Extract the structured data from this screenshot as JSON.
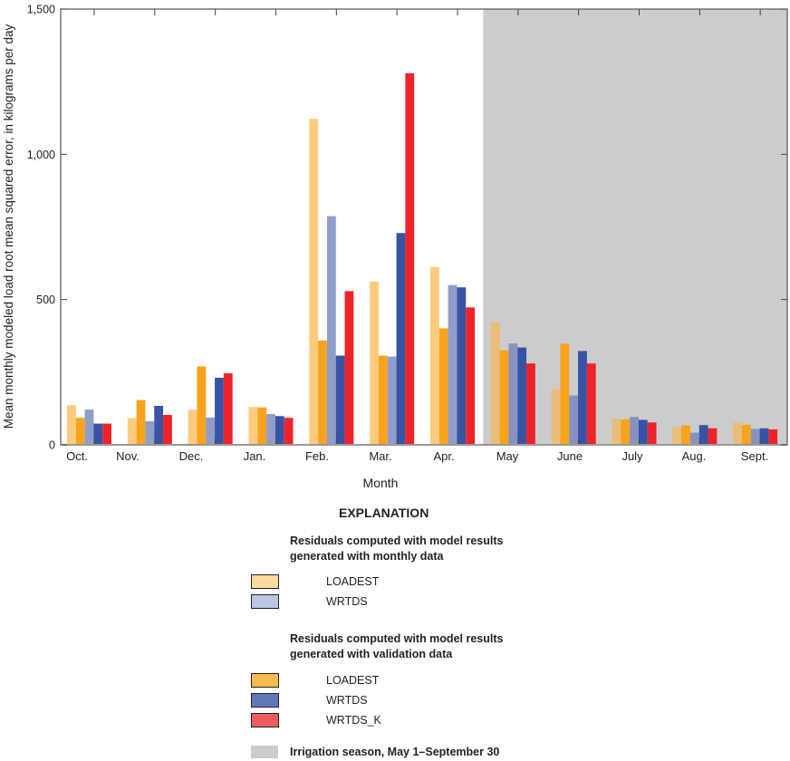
{
  "chart_data": {
    "type": "bar",
    "ylabel": "Mean monthly modeled load root mean squared error, in kilograms per day",
    "xlabel": "Month",
    "ylim": [
      0,
      1500
    ],
    "yticks": [
      "0",
      "500",
      "1,000",
      "1,500"
    ],
    "ytick_values": [
      0,
      500,
      1000,
      1500
    ],
    "categories": [
      "Oct.",
      "Nov.",
      "Dec.",
      "Jan.",
      "Feb.",
      "Mar.",
      "Apr.",
      "May",
      "June",
      "July",
      "Aug.",
      "Sept."
    ],
    "shaded_categories": [
      "May",
      "June",
      "July",
      "Aug.",
      "Sept."
    ],
    "series": [
      {
        "name": "LOADEST (monthly data)",
        "color": "#FDCB7E",
        "values": [
          136,
          92,
          121,
          130,
          1122,
          562,
          612,
          422,
          192,
          90,
          60,
          77
        ]
      },
      {
        "name": "LOADEST (validation data)",
        "color": "#F8A31B",
        "values": [
          93,
          154,
          270,
          129,
          359,
          307,
          401,
          325,
          348,
          88,
          67,
          69
        ]
      },
      {
        "name": "WRTDS (monthly data)",
        "color": "#8F9DCB",
        "values": [
          121,
          81,
          94,
          106,
          787,
          304,
          550,
          349,
          170,
          96,
          42,
          55
        ]
      },
      {
        "name": "WRTDS (validation data)",
        "color": "#3953A4",
        "values": [
          73,
          134,
          231,
          99,
          307,
          729,
          542,
          335,
          323,
          86,
          68,
          57
        ]
      },
      {
        "name": "WRTDS_K (validation data)",
        "color": "#EE2328",
        "values": [
          73,
          103,
          246,
          93,
          529,
          1279,
          473,
          280,
          280,
          77,
          57,
          53
        ]
      }
    ],
    "grid": false,
    "legend_placement": "bottom"
  },
  "legend": {
    "title": "EXPLANATION",
    "group1_line1": "Residuals computed with model results",
    "group1_line2": "generated with monthly data",
    "group1_items": [
      "LOADEST",
      "WRTDS"
    ],
    "group2_line1": "Residuals computed with model results",
    "group2_line2": "generated with validation data",
    "group2_items": [
      "LOADEST",
      "WRTDS",
      "WRTDS_K"
    ],
    "shade_label": "Irrigation season, May 1–September 30",
    "shade_color": "#CCCCCC"
  }
}
